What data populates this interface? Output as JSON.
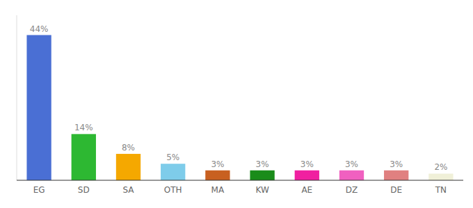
{
  "chart_data": {
    "type": "bar",
    "categories": [
      "EG",
      "SD",
      "SA",
      "OTH",
      "MA",
      "KW",
      "AE",
      "DZ",
      "DE",
      "TN"
    ],
    "values": [
      44,
      14,
      8,
      5,
      3,
      3,
      3,
      3,
      3,
      2
    ],
    "colors": [
      "#4a6fd4",
      "#2db832",
      "#f5a800",
      "#7eccea",
      "#c86020",
      "#1a8c1a",
      "#f020a0",
      "#f060c0",
      "#e08080",
      "#f0f0d8"
    ],
    "value_labels": [
      "44%",
      "14%",
      "8%",
      "5%",
      "3%",
      "3%",
      "3%",
      "3%",
      "3%",
      "2%"
    ],
    "data_labels": true,
    "ylim": [
      0,
      50
    ],
    "tick_labels": "x",
    "grid": false
  }
}
